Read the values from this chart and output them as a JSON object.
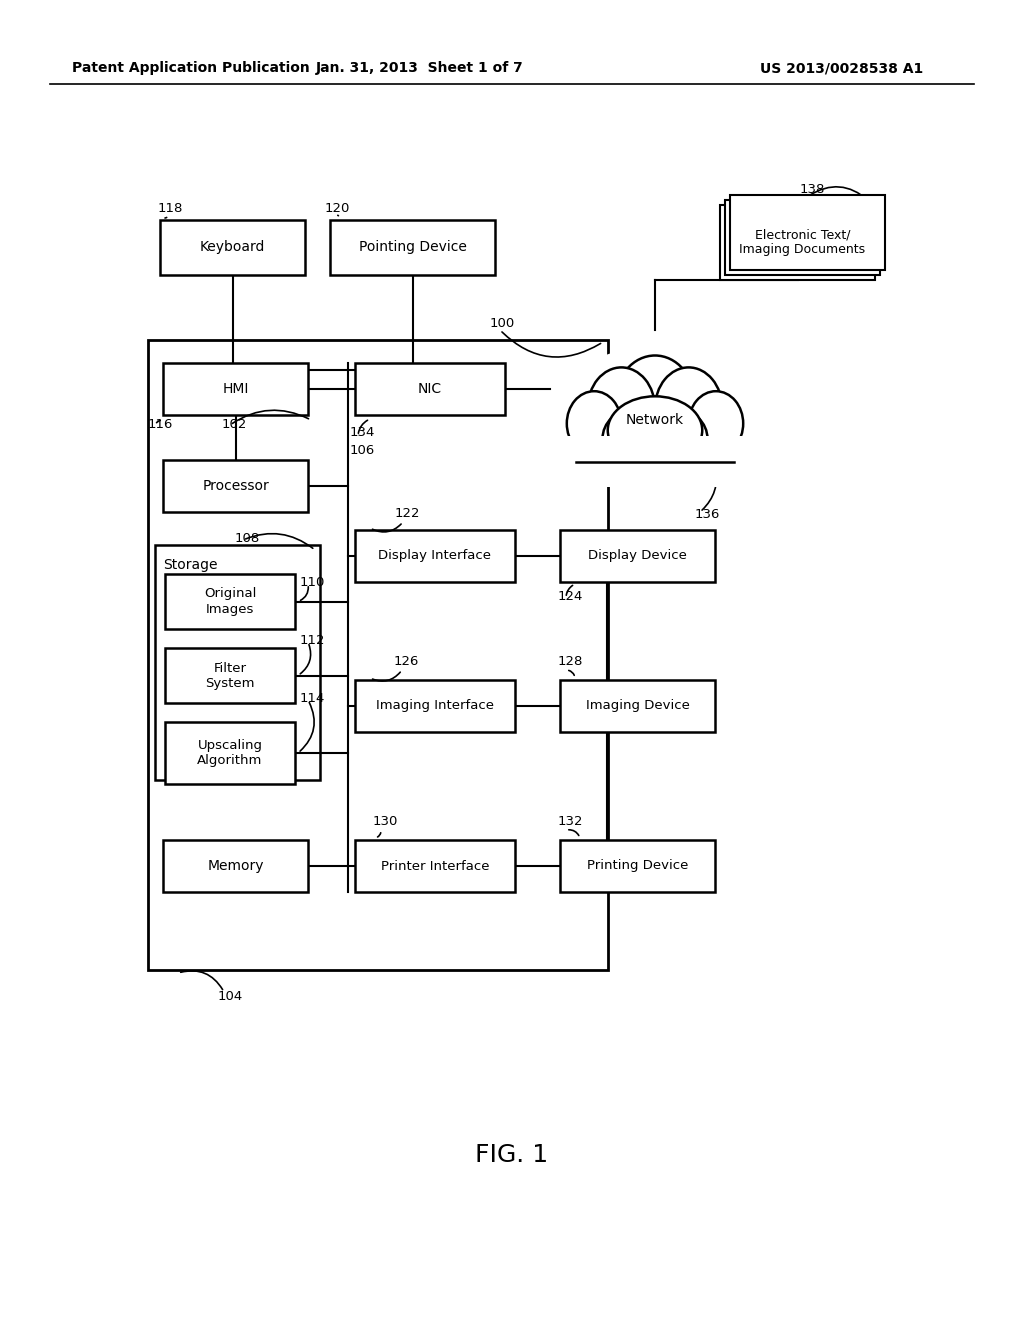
{
  "header_left": "Patent Application Publication",
  "header_mid": "Jan. 31, 2013  Sheet 1 of 7",
  "header_right": "US 2013/0028538 A1",
  "fig_label": "FIG. 1",
  "bg_color": "#ffffff"
}
